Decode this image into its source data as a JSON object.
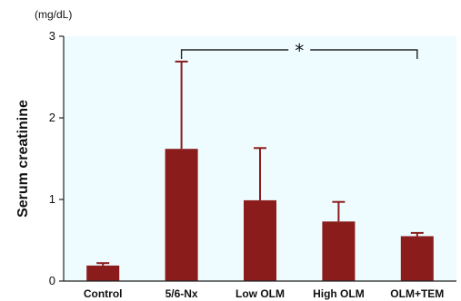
{
  "chart_data": {
    "type": "bar",
    "categories": [
      "Control",
      "5/6-Nx",
      "Low OLM",
      "High OLM",
      "OLM+TEM"
    ],
    "values": [
      0.19,
      1.62,
      0.99,
      0.73,
      0.55
    ],
    "error_upper": [
      0.22,
      2.69,
      1.63,
      0.97,
      0.59
    ],
    "ylabel": "Serum creatinine",
    "unit": "(mg/dL)",
    "ylim": [
      0,
      3
    ],
    "yticks": [
      "0",
      "1",
      "2",
      "3"
    ],
    "grid": false,
    "significance": {
      "from": 1,
      "to": 4,
      "label": "*"
    },
    "colors": {
      "bar": "#8b1c1c",
      "plot_background": "#eefcff",
      "axis": "#222222"
    }
  }
}
